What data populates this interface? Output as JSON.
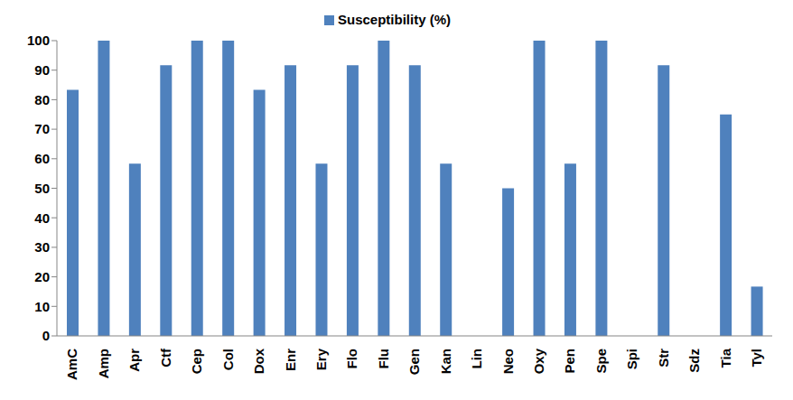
{
  "chart_data": {
    "type": "bar",
    "categories": [
      "AmC",
      "Amp",
      "Apr",
      "Ctf",
      "Cep",
      "Col",
      "Dox",
      "Enr",
      "Ery",
      "Flo",
      "Flu",
      "Gen",
      "Kan",
      "Lin",
      "Neo",
      "Oxy",
      "Pen",
      "Spe",
      "Spi",
      "Str",
      "Sdz",
      "Tia",
      "Tyl"
    ],
    "series": [
      {
        "name": "Susceptibility (%)",
        "color": "#4f81bd",
        "values": [
          83.3,
          100,
          58.3,
          91.7,
          100,
          100,
          83.3,
          91.7,
          58.3,
          91.7,
          100,
          91.7,
          58.3,
          0,
          50,
          100,
          58.3,
          100,
          0,
          91.7,
          0,
          75,
          16.7
        ]
      }
    ],
    "ylim": [
      0,
      100
    ],
    "yticks": [
      0,
      10,
      20,
      30,
      40,
      50,
      60,
      70,
      80,
      90,
      100
    ],
    "grid": false,
    "legend": "top"
  }
}
